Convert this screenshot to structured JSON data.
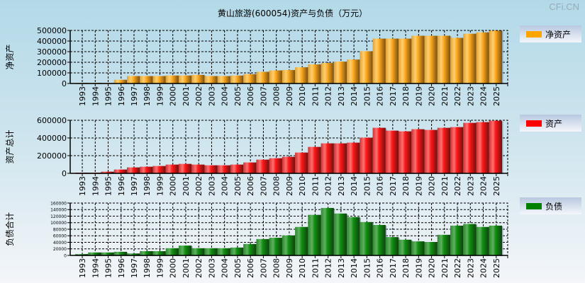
{
  "title": "黄山旅游(600054)资产与负债（万元）",
  "brand": "CFi.CN",
  "chart_data": [
    {
      "type": "bar",
      "title": "黄山旅游(600054)资产与负债（万元）",
      "ylabel": "净资产",
      "legend": "净资产",
      "color": "#ffa500",
      "ylim": [
        0,
        500000
      ],
      "yticks": [
        0,
        100000,
        200000,
        300000,
        400000,
        500000
      ],
      "categories": [
        "1993",
        "1994",
        "1995",
        "1996",
        "1997",
        "1998",
        "1999",
        "2000",
        "2001",
        "2002",
        "2003",
        "2004",
        "2005",
        "2006",
        "2007",
        "2008",
        "2009",
        "2010",
        "2011",
        "2012",
        "2013",
        "2014",
        "2015",
        "2016",
        "2017",
        "2018",
        "2019",
        "2020",
        "2021",
        "2022",
        "2023",
        "2024",
        "2025"
      ],
      "values": [
        6000,
        6000,
        5000,
        35000,
        70000,
        70000,
        70000,
        75000,
        75000,
        81000,
        70000,
        70000,
        75000,
        88000,
        110000,
        123000,
        127000,
        153000,
        180000,
        193000,
        206000,
        226000,
        304000,
        423000,
        423000,
        423000,
        450000,
        450000,
        450000,
        430000,
        469000,
        482000,
        500000
      ]
    },
    {
      "type": "bar",
      "ylabel": "资产总计",
      "legend": "资产",
      "color": "#ff0000",
      "ylim": [
        0,
        600000
      ],
      "yticks": [
        0,
        200000,
        400000,
        600000
      ],
      "categories": [
        "1993",
        "1994",
        "1995",
        "1996",
        "1997",
        "1998",
        "1999",
        "2000",
        "2001",
        "2002",
        "2003",
        "2004",
        "2005",
        "2006",
        "2007",
        "2008",
        "2009",
        "2010",
        "2011",
        "2012",
        "2013",
        "2014",
        "2015",
        "2016",
        "2017",
        "2018",
        "2019",
        "2020",
        "2021",
        "2022",
        "2023",
        "2024",
        "2025"
      ],
      "values": [
        8000,
        8000,
        19000,
        43000,
        67000,
        75000,
        83000,
        99000,
        107000,
        99000,
        91000,
        91000,
        99000,
        123000,
        155000,
        171000,
        187000,
        235000,
        299000,
        339000,
        339000,
        347000,
        403000,
        515000,
        483000,
        475000,
        499000,
        491000,
        515000,
        523000,
        571000,
        579000,
        595000
      ]
    },
    {
      "type": "bar",
      "ylabel": "负债合计",
      "legend": "负债",
      "color": "#008000",
      "ylim": [
        0,
        160000
      ],
      "yticks": [
        0,
        20000,
        40000,
        60000,
        80000,
        100000,
        120000,
        140000,
        160000
      ],
      "categories": [
        "1993",
        "1994",
        "1995",
        "1996",
        "1997",
        "1998",
        "1999",
        "2000",
        "2001",
        "2002",
        "2003",
        "2004",
        "2005",
        "2006",
        "2007",
        "2008",
        "2009",
        "2010",
        "2011",
        "2012",
        "2013",
        "2014",
        "2015",
        "2016",
        "2017",
        "2018",
        "2019",
        "2020",
        "2021",
        "2022",
        "2023",
        "2024",
        "2025"
      ],
      "values": [
        4000,
        9000,
        9000,
        11000,
        6000,
        13000,
        13000,
        22000,
        30000,
        22000,
        22000,
        22000,
        24000,
        35000,
        50000,
        54000,
        61000,
        87000,
        124000,
        145000,
        128000,
        117000,
        102000,
        93000,
        56000,
        48000,
        43000,
        41000,
        63000,
        91000,
        96000,
        87000,
        91000
      ]
    }
  ]
}
